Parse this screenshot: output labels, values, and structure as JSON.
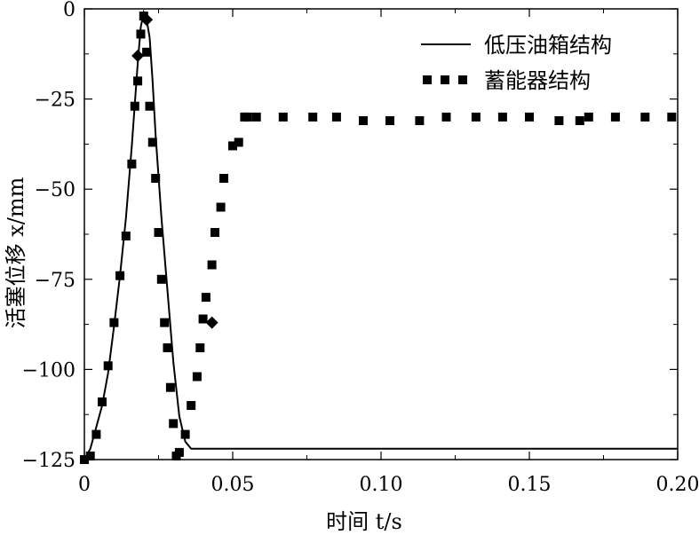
{
  "chart_data": {
    "type": "line",
    "xlabel": "时间 t/s",
    "ylabel": "活塞位移 x/mm",
    "xlim": [
      0,
      0.2
    ],
    "ylim": [
      -125,
      0
    ],
    "x_ticks": [
      "0",
      "0.05",
      "0.10",
      "0.15",
      "0.20"
    ],
    "y_ticks": [
      "0",
      "−25",
      "−50",
      "−75",
      "−100",
      "−125"
    ],
    "legend_position": "top-right",
    "series": [
      {
        "name": "低压油箱结构",
        "style": "solid",
        "color": "#000000",
        "x": [
          0,
          0.002,
          0.004,
          0.006,
          0.008,
          0.01,
          0.012,
          0.014,
          0.016,
          0.018,
          0.019,
          0.02,
          0.021,
          0.022,
          0.023,
          0.024,
          0.026,
          0.028,
          0.03,
          0.032,
          0.034,
          0.036,
          0.04,
          0.06,
          0.1,
          0.15,
          0.2
        ],
        "y": [
          -125,
          -122,
          -116,
          -110,
          -101,
          -88,
          -74,
          -58,
          -38,
          -15,
          -5,
          -1,
          -3,
          -8,
          -20,
          -35,
          -58,
          -78,
          -98,
          -113,
          -120,
          -122,
          -122,
          -122,
          -122,
          -122,
          -122
        ]
      },
      {
        "name": "蓄能器结构",
        "style": "dashed-square",
        "color": "#000000",
        "x": [
          0,
          0.002,
          0.004,
          0.006,
          0.008,
          0.01,
          0.012,
          0.014,
          0.016,
          0.017,
          0.018,
          0.019,
          0.02,
          0.021,
          0.022,
          0.023,
          0.024,
          0.025,
          0.026,
          0.027,
          0.028,
          0.029,
          0.03,
          0.031,
          0.032,
          0.034,
          0.036,
          0.038,
          0.039,
          0.04,
          0.041,
          0.043,
          0.044,
          0.046,
          0.047,
          0.05,
          0.052,
          0.054,
          0.055,
          0.058,
          0.067,
          0.077,
          0.085,
          0.094,
          0.103,
          0.113,
          0.122,
          0.132,
          0.141,
          0.15,
          0.16,
          0.167,
          0.17,
          0.179,
          0.189,
          0.198
        ],
        "y": [
          -125,
          -124,
          -118,
          -109,
          -99,
          -87,
          -74,
          -63,
          -43,
          -27,
          -20,
          -7,
          -2,
          -12,
          -27,
          -37,
          -47,
          -62,
          -75,
          -87,
          -94,
          -105,
          -115,
          -124,
          -123,
          -118,
          -110,
          -102,
          -94,
          -86,
          -80,
          -71,
          -62,
          -55,
          -47,
          -38,
          -37,
          -30,
          -30,
          -30,
          -30,
          -30,
          -30,
          -31,
          -31,
          -31,
          -30,
          -30,
          -30,
          -30,
          -31,
          -31,
          -30,
          -30,
          -30,
          -30
        ]
      }
    ],
    "markers": [
      {
        "x": 0.018,
        "y": -13,
        "shape": "diamond"
      },
      {
        "x": 0.021,
        "y": -3,
        "shape": "diamond"
      },
      {
        "x": 0.043,
        "y": -87,
        "shape": "diamond"
      }
    ]
  }
}
